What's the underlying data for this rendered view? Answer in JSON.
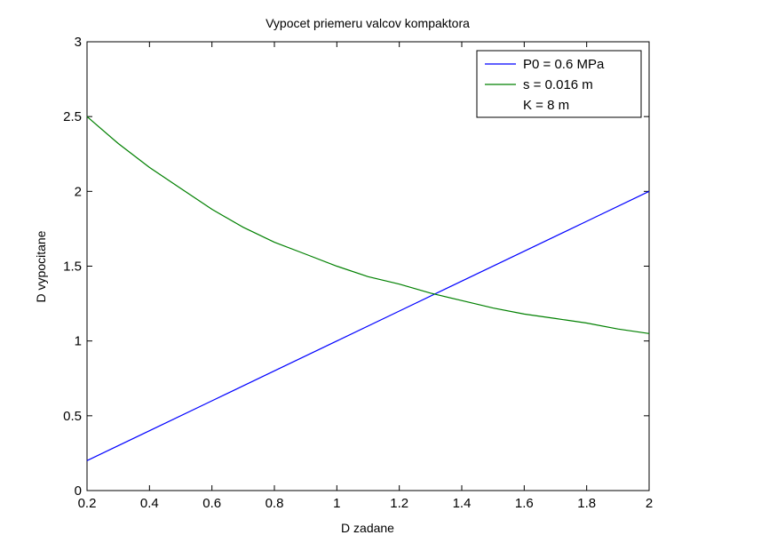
{
  "chart_data": {
    "type": "line",
    "title": "Vypocet priemeru valcov kompaktora",
    "xlabel": "D zadane",
    "ylabel": "D vypocitane",
    "xlim": [
      0.2,
      2
    ],
    "ylim": [
      0,
      3
    ],
    "x_ticks": [
      "0.2",
      "0.4",
      "0.6",
      "0.8",
      "1",
      "1.2",
      "1.4",
      "1.6",
      "1.8",
      "2"
    ],
    "y_ticks": [
      "0",
      "0.5",
      "1",
      "1.5",
      "2",
      "2.5",
      "3"
    ],
    "grid": false,
    "legend_position": "top-right",
    "legend_extra": "K = 8 m",
    "series": [
      {
        "name": "P0 = 0.6 MPa",
        "color": "#0000ff",
        "x": [
          0.2,
          0.4,
          0.6,
          0.8,
          1.0,
          1.2,
          1.4,
          1.6,
          1.8,
          2.0
        ],
        "y": [
          0.2,
          0.4,
          0.6,
          0.8,
          1.0,
          1.2,
          1.4,
          1.6,
          1.8,
          2.0
        ]
      },
      {
        "name": "s = 0.016 m",
        "color": "#008000",
        "x": [
          0.2,
          0.3,
          0.4,
          0.5,
          0.6,
          0.7,
          0.8,
          0.9,
          1.0,
          1.1,
          1.2,
          1.3,
          1.4,
          1.5,
          1.6,
          1.7,
          1.8,
          1.9,
          2.0
        ],
        "y": [
          2.5,
          2.32,
          2.16,
          2.02,
          1.88,
          1.76,
          1.66,
          1.58,
          1.5,
          1.43,
          1.38,
          1.32,
          1.27,
          1.22,
          1.18,
          1.15,
          1.12,
          1.08,
          1.05
        ]
      }
    ]
  }
}
